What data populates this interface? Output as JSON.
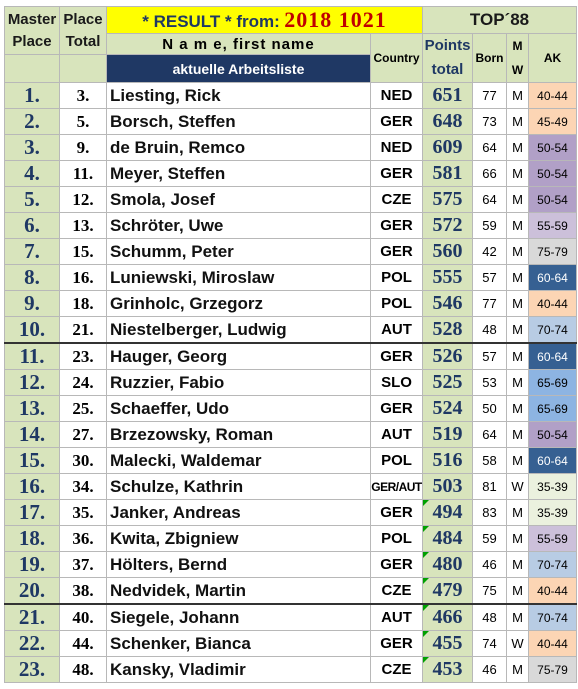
{
  "header": {
    "master_line1": "Master",
    "master_line2": "Place",
    "place_line1": "Place",
    "place_line2": "Total",
    "banner_label": "* RESULT *  from:",
    "banner_date": "2018  1021",
    "top_label": "TOP´88",
    "name_label": "N a m e, first name",
    "worklist_label": "aktuelle Arbeitsliste",
    "country_label": "Country",
    "points_line1": "Points",
    "points_line2": "total",
    "born_label": "Born",
    "gender_line1": "M",
    "gender_line2": "W",
    "ak_label": "AK"
  },
  "ak_colors": {
    "35-39": "#ebf1de",
    "40-44": "#fcd5b4",
    "45-49": "#fcd5b4",
    "50-54": "#b1a0c7",
    "55-59": "#ccc0da",
    "60-64": "#366092",
    "65-69": "#8db4e2",
    "70-74": "#b8cce4",
    "75-79": "#d9d9d9"
  },
  "rows": [
    {
      "master": "1.",
      "place": "3.",
      "name": "Liesting, Rick",
      "country": "NED",
      "points": "651",
      "born": "77",
      "gender": "M",
      "ak": "40-44"
    },
    {
      "master": "2.",
      "place": "5.",
      "name": "Borsch, Steffen",
      "country": "GER",
      "points": "648",
      "born": "73",
      "gender": "M",
      "ak": "45-49"
    },
    {
      "master": "3.",
      "place": "9.",
      "name": "de Bruin, Remco",
      "country": "NED",
      "points": "609",
      "born": "64",
      "gender": "M",
      "ak": "50-54"
    },
    {
      "master": "4.",
      "place": "11.",
      "name": "Meyer, Steffen",
      "country": "GER",
      "points": "581",
      "born": "66",
      "gender": "M",
      "ak": "50-54"
    },
    {
      "master": "5.",
      "place": "12.",
      "name": "Smola, Josef",
      "country": "CZE",
      "points": "575",
      "born": "64",
      "gender": "M",
      "ak": "50-54"
    },
    {
      "master": "6.",
      "place": "13.",
      "name": "Schröter, Uwe",
      "country": "GER",
      "points": "572",
      "born": "59",
      "gender": "M",
      "ak": "55-59"
    },
    {
      "master": "7.",
      "place": "15.",
      "name": "Schumm, Peter",
      "country": "GER",
      "points": "560",
      "born": "42",
      "gender": "M",
      "ak": "75-79"
    },
    {
      "master": "8.",
      "place": "16.",
      "name": "Luniewski, Miroslaw",
      "country": "POL",
      "points": "555",
      "born": "57",
      "gender": "M",
      "ak": "60-64"
    },
    {
      "master": "9.",
      "place": "18.",
      "name": "Grinholc, Grzegorz",
      "country": "POL",
      "points": "546",
      "born": "77",
      "gender": "M",
      "ak": "40-44"
    },
    {
      "master": "10.",
      "place": "21.",
      "name": "Niestelberger, Ludwig",
      "country": "AUT",
      "points": "528",
      "born": "48",
      "gender": "M",
      "ak": "70-74"
    },
    {
      "master": "11.",
      "place": "23.",
      "name": "Hauger, Georg",
      "country": "GER",
      "points": "526",
      "born": "57",
      "gender": "M",
      "ak": "60-64"
    },
    {
      "master": "12.",
      "place": "24.",
      "name": "Ruzzier, Fabio",
      "country": "SLO",
      "points": "525",
      "born": "53",
      "gender": "M",
      "ak": "65-69"
    },
    {
      "master": "13.",
      "place": "25.",
      "name": "Schaeffer, Udo",
      "country": "GER",
      "points": "524",
      "born": "50",
      "gender": "M",
      "ak": "65-69"
    },
    {
      "master": "14.",
      "place": "27.",
      "name": "Brzezowsky, Roman",
      "country": "AUT",
      "points": "519",
      "born": "64",
      "gender": "M",
      "ak": "50-54"
    },
    {
      "master": "15.",
      "place": "30.",
      "name": "Malecki, Waldemar",
      "country": "POL",
      "points": "516",
      "born": "58",
      "gender": "M",
      "ak": "60-64"
    },
    {
      "master": "16.",
      "place": "34.",
      "name": "Schulze, Kathrin",
      "country": "GER/AUT",
      "points": "503",
      "born": "81",
      "gender": "W",
      "ak": "35-39"
    },
    {
      "master": "17.",
      "place": "35.",
      "name": "Janker, Andreas",
      "country": "GER",
      "points": "494",
      "born": "83",
      "gender": "M",
      "ak": "35-39"
    },
    {
      "master": "18.",
      "place": "36.",
      "name": "Kwita, Zbigniew",
      "country": "POL",
      "points": "484",
      "born": "59",
      "gender": "M",
      "ak": "55-59"
    },
    {
      "master": "19.",
      "place": "37.",
      "name": "Hölters, Bernd",
      "country": "GER",
      "points": "480",
      "born": "46",
      "gender": "M",
      "ak": "70-74"
    },
    {
      "master": "20.",
      "place": "38.",
      "name": "Nedvidek, Martin",
      "country": "CZE",
      "points": "479",
      "born": "75",
      "gender": "M",
      "ak": "40-44"
    },
    {
      "master": "21.",
      "place": "40.",
      "name": "Siegele, Johann",
      "country": "AUT",
      "points": "466",
      "born": "48",
      "gender": "M",
      "ak": "70-74"
    },
    {
      "master": "22.",
      "place": "44.",
      "name": "Schenker, Bianca",
      "country": "GER",
      "points": "455",
      "born": "74",
      "gender": "W",
      "ak": "40-44"
    },
    {
      "master": "23.",
      "place": "48.",
      "name": "Kansky, Vladimir",
      "country": "CZE",
      "points": "453",
      "born": "46",
      "gender": "M",
      "ak": "75-79"
    }
  ]
}
